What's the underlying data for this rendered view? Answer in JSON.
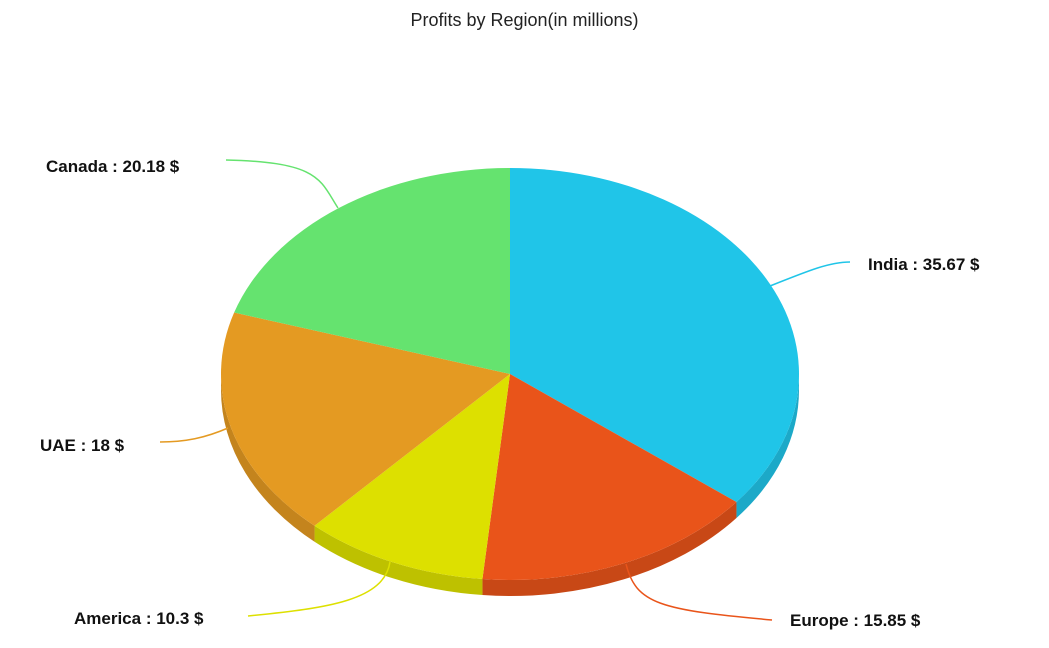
{
  "chart_data": {
    "type": "pie",
    "title": "Profits by Region(in millions)",
    "slices": [
      {
        "name": "India",
        "value": 35.67,
        "color": "#20c5e8",
        "label": "India : 35.67 $"
      },
      {
        "name": "Europe",
        "value": 15.85,
        "color": "#e9541a",
        "label": "Europe : 15.85 $"
      },
      {
        "name": "America",
        "value": 10.3,
        "color": "#dde000",
        "label": "America : 10.3 $"
      },
      {
        "name": "UAE",
        "value": 18,
        "color": "#e49a22",
        "label": "UAE : 18 $"
      },
      {
        "name": "Canada",
        "value": 20.18,
        "color": "#65e36f",
        "label": "Canada : 20.18 $"
      }
    ],
    "start_angle_deg": 0,
    "direction": "clockwise",
    "style": "3d-tilted"
  }
}
